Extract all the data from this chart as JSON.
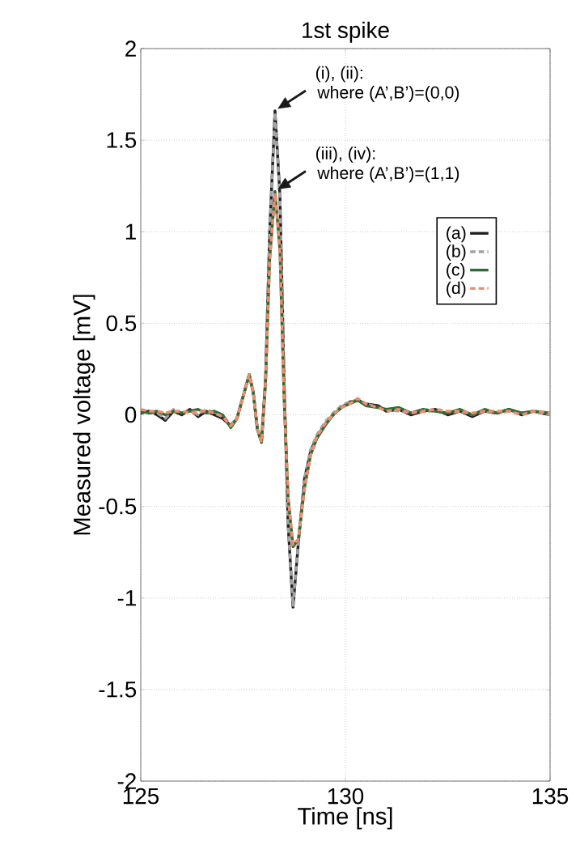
{
  "chart_data": {
    "type": "line",
    "title": "1st spike",
    "xlabel": "Time [ns]",
    "ylabel": "Measured voltage [mV]",
    "x": [
      125.0,
      125.2,
      125.4,
      125.6,
      125.8,
      126.0,
      126.2,
      126.4,
      126.6,
      126.8,
      127.0,
      127.2,
      127.35,
      127.5,
      127.65,
      127.75,
      127.85,
      127.95,
      128.05,
      128.15,
      128.28,
      128.4,
      128.5,
      128.6,
      128.72,
      128.85,
      129.0,
      129.15,
      129.3,
      129.5,
      129.7,
      129.9,
      130.1,
      130.3,
      130.5,
      130.8,
      131.0,
      131.3,
      131.6,
      131.9,
      132.2,
      132.5,
      132.8,
      133.1,
      133.4,
      133.7,
      134.0,
      134.3,
      134.6,
      135.0
    ],
    "series": [
      {
        "name": "(a)",
        "color": "#231f20",
        "line_style": "solid",
        "values": [
          0.01,
          0.02,
          0.0,
          -0.03,
          0.02,
          0.0,
          0.03,
          -0.01,
          0.02,
          0.0,
          -0.02,
          -0.06,
          -0.02,
          0.1,
          0.22,
          0.12,
          -0.08,
          -0.15,
          0.2,
          1.0,
          1.66,
          1.2,
          0.2,
          -0.6,
          -1.05,
          -0.7,
          -0.35,
          -0.2,
          -0.12,
          -0.05,
          0.0,
          0.04,
          0.07,
          0.08,
          0.06,
          0.05,
          0.02,
          0.03,
          0.0,
          0.02,
          0.03,
          0.0,
          0.02,
          -0.01,
          0.02,
          0.01,
          0.03,
          0.0,
          0.02,
          0.0
        ]
      },
      {
        "name": "(b)",
        "color": "#a3a3a3",
        "line_style": "dashed",
        "values": [
          0.02,
          0.01,
          0.01,
          -0.02,
          0.03,
          0.01,
          0.02,
          0.0,
          0.03,
          0.01,
          -0.01,
          -0.05,
          -0.02,
          0.1,
          0.22,
          0.12,
          -0.08,
          -0.15,
          0.2,
          1.0,
          1.65,
          1.2,
          0.2,
          -0.6,
          -1.04,
          -0.7,
          -0.35,
          -0.19,
          -0.11,
          -0.04,
          0.01,
          0.05,
          0.07,
          0.08,
          0.06,
          0.04,
          0.03,
          0.02,
          0.01,
          0.02,
          0.02,
          0.01,
          0.02,
          0.0,
          0.02,
          0.01,
          0.02,
          0.01,
          0.02,
          0.0
        ]
      },
      {
        "name": "(c)",
        "color": "#2e6b35",
        "line_style": "solid",
        "values": [
          0.02,
          0.01,
          0.02,
          0.0,
          0.02,
          0.01,
          0.02,
          0.03,
          0.01,
          0.02,
          0.0,
          -0.07,
          -0.02,
          0.1,
          0.22,
          0.12,
          -0.08,
          -0.15,
          0.18,
          0.85,
          1.22,
          0.9,
          0.1,
          -0.45,
          -0.72,
          -0.68,
          -0.4,
          -0.22,
          -0.13,
          -0.06,
          0.0,
          0.04,
          0.06,
          0.08,
          0.05,
          0.04,
          0.03,
          0.04,
          0.01,
          0.03,
          0.02,
          0.01,
          0.03,
          0.0,
          0.03,
          0.01,
          0.03,
          0.01,
          0.02,
          0.01
        ]
      },
      {
        "name": "(d)",
        "color": "#f08c6e",
        "line_style": "dashed",
        "values": [
          0.03,
          0.02,
          0.02,
          0.01,
          0.02,
          0.02,
          0.01,
          0.02,
          0.02,
          0.01,
          -0.01,
          -0.06,
          -0.02,
          0.1,
          0.22,
          0.12,
          -0.08,
          -0.15,
          0.18,
          0.85,
          1.21,
          0.9,
          0.1,
          -0.45,
          -0.71,
          -0.68,
          -0.4,
          -0.22,
          -0.12,
          -0.05,
          0.0,
          0.04,
          0.06,
          0.09,
          0.06,
          0.04,
          0.02,
          0.03,
          0.01,
          0.02,
          0.03,
          0.02,
          0.02,
          0.01,
          0.02,
          0.02,
          0.02,
          0.0,
          0.02,
          0.01
        ]
      }
    ],
    "xlim": [
      125,
      135
    ],
    "ylim": [
      -2,
      2
    ],
    "xticks": [
      125,
      130,
      135
    ],
    "yticks": [
      -2,
      -1.5,
      -1,
      -0.5,
      0,
      0.5,
      1,
      1.5,
      2
    ],
    "grid": true,
    "legend": "top right",
    "marker": "none",
    "annotations": [
      {
        "text": "(i), (ii):",
        "x": 128.28,
        "y": 1.66
      },
      "where (A’,B’)=(0,0)",
      {
        "text": "(iii), (iv):",
        "x": 128.28,
        "y": 1.22
      },
      "where (A’,B’)=(1,1)"
    ]
  }
}
